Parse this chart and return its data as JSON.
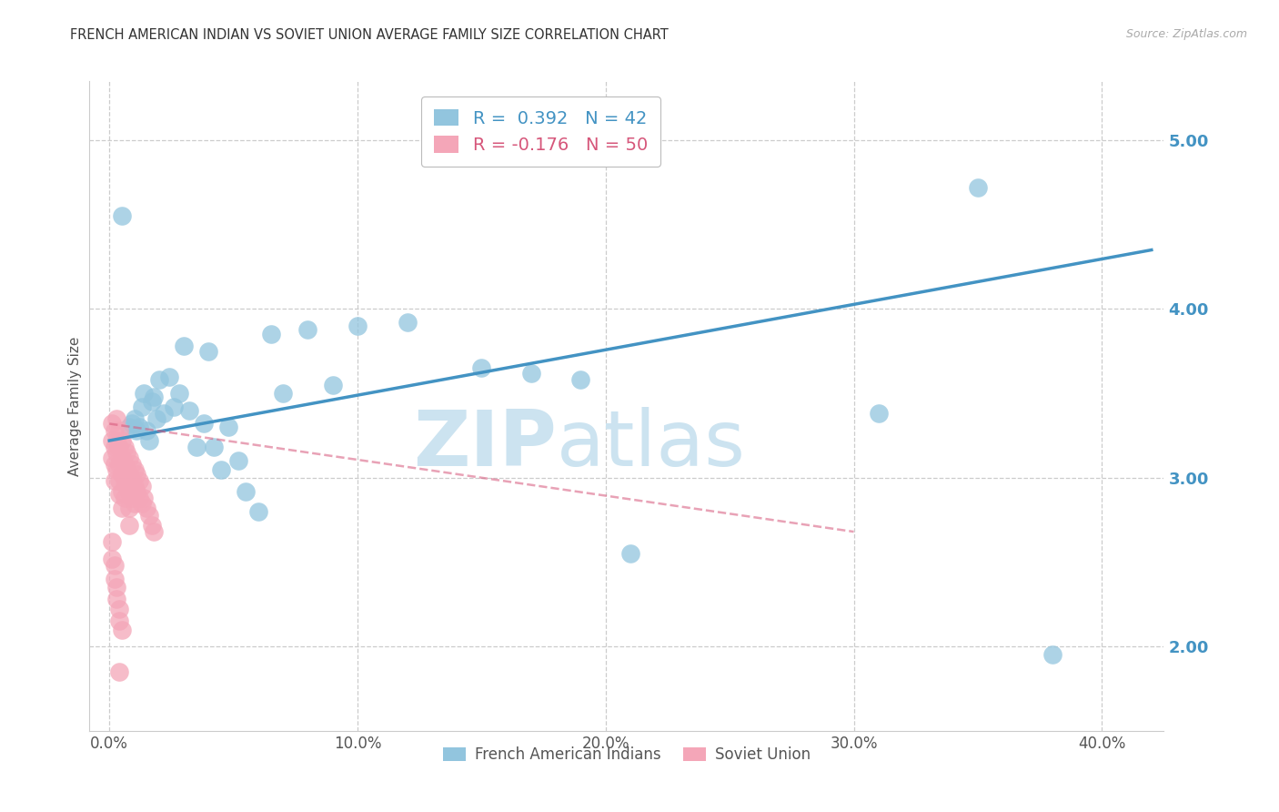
{
  "title": "FRENCH AMERICAN INDIAN VS SOVIET UNION AVERAGE FAMILY SIZE CORRELATION CHART",
  "source": "Source: ZipAtlas.com",
  "ylabel": "Average Family Size",
  "xlabel_ticks": [
    "0.0%",
    "10.0%",
    "20.0%",
    "30.0%",
    "40.0%"
  ],
  "xlabel_vals": [
    0.0,
    0.1,
    0.2,
    0.3,
    0.4
  ],
  "ytick_labels": [
    "2.00",
    "3.00",
    "4.00",
    "5.00"
  ],
  "ytick_vals": [
    2.0,
    3.0,
    4.0,
    5.0
  ],
  "ylim": [
    1.5,
    5.35
  ],
  "xlim": [
    -0.008,
    0.425
  ],
  "watermark_zip": "ZIP",
  "watermark_atlas": "atlas",
  "legend_entry1": "R =  0.392   N = 42",
  "legend_entry2": "R = -0.176   N = 50",
  "legend_label1": "French American Indians",
  "legend_label2": "Soviet Union",
  "blue_color": "#92c5de",
  "pink_color": "#f4a6b8",
  "line_blue": "#4393c3",
  "line_pink": "#d6567a",
  "blue_R": 0.392,
  "blue_N": 42,
  "pink_R": -0.176,
  "pink_N": 50,
  "blue_line_x0": 0.0,
  "blue_line_y0": 3.22,
  "blue_line_x1": 0.42,
  "blue_line_y1": 4.35,
  "pink_line_x0": 0.0,
  "pink_line_y0": 3.32,
  "pink_line_x1": 0.3,
  "pink_line_y1": 2.68,
  "blue_x": [
    0.005,
    0.008,
    0.009,
    0.01,
    0.011,
    0.012,
    0.013,
    0.014,
    0.015,
    0.016,
    0.017,
    0.018,
    0.019,
    0.02,
    0.022,
    0.024,
    0.026,
    0.028,
    0.03,
    0.032,
    0.035,
    0.038,
    0.04,
    0.042,
    0.045,
    0.048,
    0.052,
    0.055,
    0.06,
    0.065,
    0.07,
    0.08,
    0.09,
    0.1,
    0.12,
    0.15,
    0.17,
    0.19,
    0.21,
    0.31,
    0.35,
    0.38
  ],
  "blue_y": [
    4.55,
    3.3,
    3.32,
    3.35,
    3.28,
    3.3,
    3.42,
    3.5,
    3.28,
    3.22,
    3.45,
    3.48,
    3.35,
    3.58,
    3.38,
    3.6,
    3.42,
    3.5,
    3.78,
    3.4,
    3.18,
    3.32,
    3.75,
    3.18,
    3.05,
    3.3,
    3.1,
    2.92,
    2.8,
    3.85,
    3.5,
    3.88,
    3.55,
    3.9,
    3.92,
    3.65,
    3.62,
    3.58,
    2.55,
    3.38,
    4.72,
    1.95
  ],
  "pink_x": [
    0.001,
    0.001,
    0.001,
    0.002,
    0.002,
    0.002,
    0.002,
    0.003,
    0.003,
    0.003,
    0.003,
    0.004,
    0.004,
    0.004,
    0.004,
    0.004,
    0.005,
    0.005,
    0.005,
    0.005,
    0.005,
    0.006,
    0.006,
    0.006,
    0.006,
    0.007,
    0.007,
    0.007,
    0.008,
    0.008,
    0.008,
    0.008,
    0.008,
    0.009,
    0.009,
    0.009,
    0.01,
    0.01,
    0.01,
    0.011,
    0.011,
    0.012,
    0.012,
    0.013,
    0.013,
    0.014,
    0.015,
    0.016,
    0.017,
    0.018
  ],
  "pink_y": [
    3.32,
    3.22,
    3.12,
    3.28,
    3.18,
    3.08,
    2.98,
    3.35,
    3.22,
    3.15,
    3.05,
    3.28,
    3.18,
    3.08,
    2.98,
    2.9,
    3.22,
    3.12,
    3.02,
    2.92,
    2.82,
    3.18,
    3.08,
    2.98,
    2.88,
    3.15,
    3.05,
    2.95,
    3.12,
    3.02,
    2.92,
    2.82,
    2.72,
    3.08,
    2.98,
    2.88,
    3.05,
    2.95,
    2.85,
    3.02,
    2.92,
    2.98,
    2.88,
    2.95,
    2.85,
    2.88,
    2.82,
    2.78,
    2.72,
    2.68
  ],
  "pink_extra_x": [
    0.001,
    0.001,
    0.002,
    0.002,
    0.003,
    0.003,
    0.004,
    0.004,
    0.004,
    0.005
  ],
  "pink_extra_y": [
    2.62,
    2.52,
    2.48,
    2.4,
    2.35,
    2.28,
    2.22,
    2.15,
    1.85,
    2.1
  ]
}
